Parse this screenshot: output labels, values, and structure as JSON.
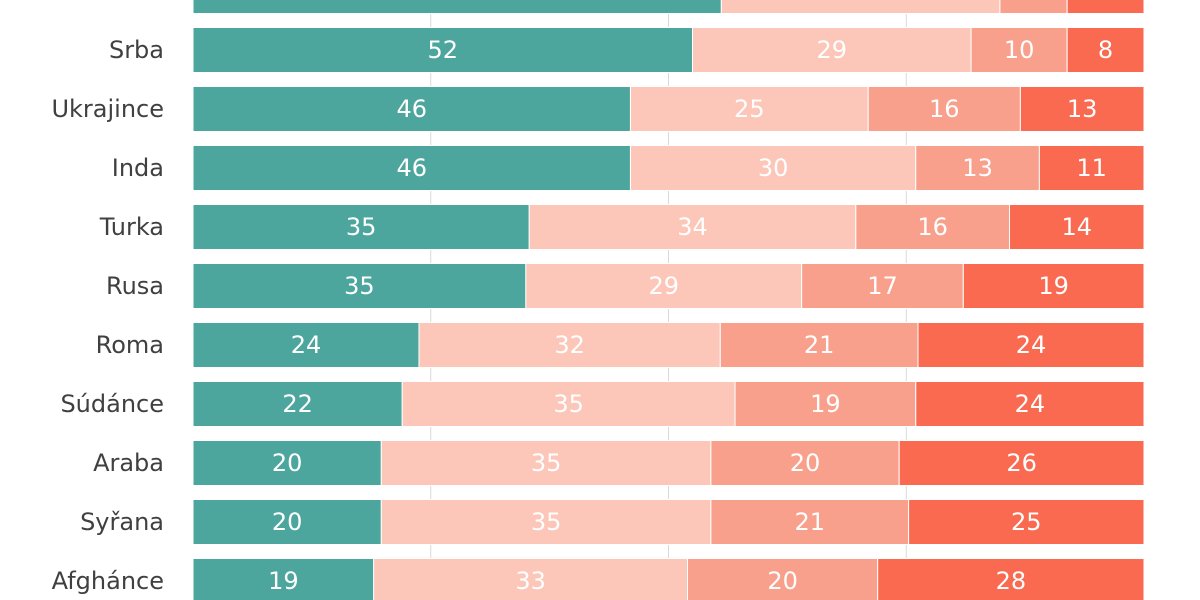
{
  "chart_data": {
    "type": "bar",
    "orientation": "horizontal",
    "stacked": "100%",
    "grid": true,
    "xlim": [
      0,
      100
    ],
    "categories": [
      "",
      "Srba",
      "Ukrajince",
      "Inda",
      "Turka",
      "Rusa",
      "Roma",
      "Súdánce",
      "Araba",
      "Syřana",
      "Afghánce"
    ],
    "series": [
      {
        "values": [
          55,
          52,
          46,
          46,
          35,
          35,
          24,
          22,
          20,
          20,
          19
        ],
        "color": "#4da69e",
        "label_color": "#ffffff"
      },
      {
        "values": [
          29,
          29,
          25,
          30,
          34,
          29,
          32,
          35,
          35,
          35,
          33
        ],
        "color": "#fcc6b8",
        "label_color": "#ffffff"
      },
      {
        "values": [
          7,
          10,
          16,
          13,
          16,
          17,
          21,
          19,
          20,
          21,
          20
        ],
        "color": "#f9a08d",
        "label_color": "#ffffff"
      },
      {
        "values": [
          8,
          8,
          13,
          11,
          14,
          19,
          24,
          24,
          26,
          25,
          28
        ],
        "color": "#f96a50",
        "label_color": "#ffffff"
      }
    ],
    "labels_visible": [
      false,
      true,
      true,
      true,
      true,
      true,
      true,
      true,
      true,
      true,
      true
    ]
  }
}
